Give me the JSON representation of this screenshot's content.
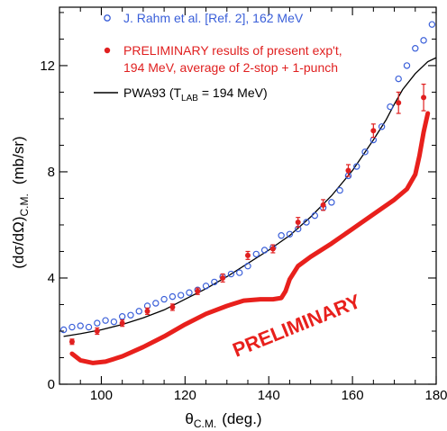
{
  "chart_data": {
    "type": "scatter",
    "xlabel": {
      "symbol": "θ",
      "sub": "C.M.",
      "unit": "(deg.)"
    },
    "ylabel": {
      "main": "(dσ/dΩ)",
      "sub": "C.M.",
      "unit": "(mb/sr)"
    },
    "xlim": [
      90,
      180
    ],
    "ylim": [
      0,
      14.2
    ],
    "x_ticks": [
      "100",
      "120",
      "140",
      "160",
      "180"
    ],
    "y_ticks": [
      "0",
      "4",
      "8",
      "12"
    ],
    "x_tick_values": [
      100,
      120,
      140,
      160,
      180
    ],
    "y_tick_values": [
      0,
      4,
      8,
      12
    ],
    "legend_placement": "top-left",
    "series": [
      {
        "name": "J. Rahm et al. [Ref. 2], 162 MeV",
        "marker": "open-circle",
        "color": "#3a5fd9",
        "x": [
          91,
          93,
          95,
          97,
          99,
          101,
          103,
          105,
          107,
          109,
          111,
          113,
          115,
          117,
          119,
          121,
          123,
          125,
          127,
          129,
          131,
          133,
          135,
          137,
          139,
          141,
          143,
          145,
          147,
          149,
          151,
          153,
          155,
          157,
          159,
          161,
          163,
          165,
          167,
          169,
          171,
          173,
          175,
          177,
          179
        ],
        "y": [
          2.05,
          2.15,
          2.2,
          2.15,
          2.3,
          2.4,
          2.35,
          2.55,
          2.6,
          2.75,
          2.95,
          3.05,
          3.2,
          3.3,
          3.35,
          3.45,
          3.55,
          3.7,
          3.85,
          4.05,
          4.15,
          4.2,
          4.45,
          4.9,
          5.05,
          5.15,
          5.6,
          5.65,
          5.85,
          6.1,
          6.35,
          6.65,
          6.85,
          7.3,
          7.85,
          8.2,
          8.75,
          9.2,
          9.7,
          10.45,
          11.5,
          12.0,
          12.65,
          12.95,
          13.55
        ]
      },
      {
        "name": "PRELIMINARY results of present exp't, 194 MeV, average of 2-stop + 1-punch",
        "name_lines": [
          "PRELIMINARY results of present exp't,",
          "194 MeV, average of 2-stop + 1-punch"
        ],
        "marker": "filled-circle",
        "color": "#e02020",
        "x": [
          93,
          99,
          105,
          111,
          117,
          123,
          129,
          135,
          141,
          147,
          153,
          159,
          165,
          171,
          177
        ],
        "y": [
          1.6,
          2.0,
          2.3,
          2.75,
          2.9,
          3.5,
          4.0,
          4.85,
          5.1,
          6.1,
          6.75,
          8.05,
          9.55,
          10.6,
          10.8
        ],
        "yerr": [
          0.1,
          0.12,
          0.12,
          0.12,
          0.12,
          0.12,
          0.15,
          0.15,
          0.15,
          0.18,
          0.2,
          0.22,
          0.25,
          0.4,
          0.5
        ]
      },
      {
        "name": "PWA93 (T_LAB = 194 MeV)",
        "name_parts": {
          "pre": "PWA93 (T",
          "sub": "LAB",
          "post": " = 194 MeV)"
        },
        "marker": "line",
        "color": "#000000",
        "x": [
          91,
          95,
          100,
          105,
          110,
          115,
          120,
          125,
          130,
          135,
          140,
          145,
          150,
          155,
          160,
          165,
          168,
          170,
          172,
          175,
          178,
          180
        ],
        "y": [
          1.8,
          1.9,
          2.05,
          2.25,
          2.5,
          2.8,
          3.2,
          3.6,
          4.05,
          4.55,
          5.05,
          5.6,
          6.3,
          7.1,
          8.05,
          9.2,
          9.95,
          10.55,
          11.1,
          11.7,
          12.15,
          12.3
        ]
      }
    ],
    "annotations": [
      {
        "text": "PRELIMINARY",
        "color": "#e8201c",
        "curve_x": [
          93,
          95,
          98,
          101,
          105,
          110,
          115,
          120,
          125,
          130,
          134,
          138,
          141,
          143,
          144,
          145,
          147,
          150,
          155,
          160,
          165,
          170,
          173,
          175,
          176,
          177,
          178
        ],
        "curve_y": [
          1.15,
          0.9,
          0.8,
          0.85,
          1.05,
          1.4,
          1.8,
          2.25,
          2.65,
          2.95,
          3.15,
          3.2,
          3.2,
          3.25,
          3.5,
          3.95,
          4.45,
          4.8,
          5.3,
          5.85,
          6.4,
          6.95,
          7.35,
          7.9,
          8.6,
          9.5,
          10.2
        ]
      }
    ]
  }
}
